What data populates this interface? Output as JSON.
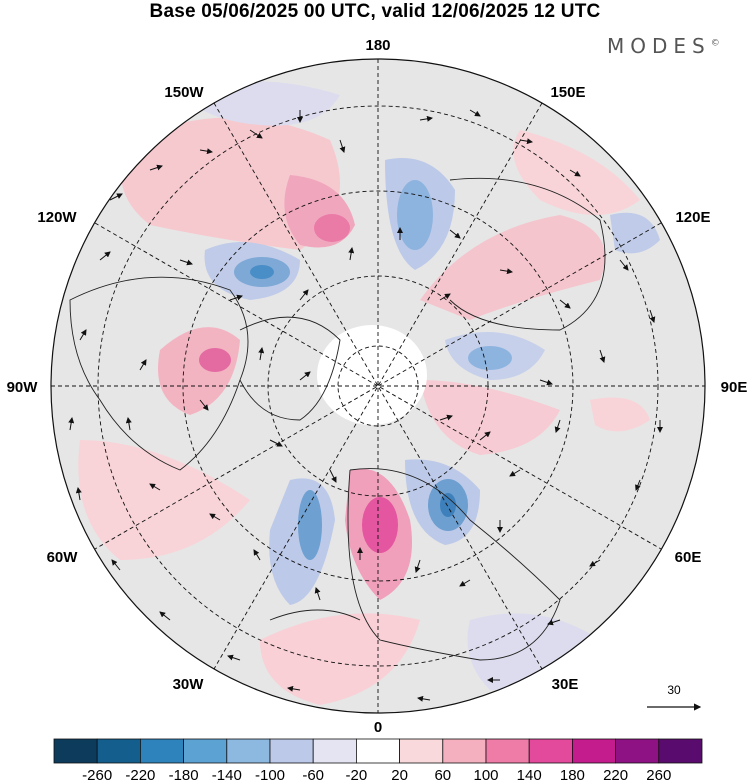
{
  "title": "Base 05/06/2025 00 UTC, valid 12/06/2025 12 UTC",
  "brand": {
    "name": "MODES",
    "mark": "©"
  },
  "map": {
    "projection": "north-polar-stereographic",
    "longitude_labels": {
      "top": "180",
      "upper_left": "150W",
      "upper_right": "150E",
      "left_upper": "120W",
      "right_upper": "120E",
      "left": "90W",
      "right": "90E",
      "left_lower": "60W",
      "right_lower": "60E",
      "lower_left": "30W",
      "lower_right": "30E",
      "bottom": "0"
    },
    "field": "anomaly shading with wind vectors",
    "reference_vector": {
      "value": "30"
    }
  },
  "colorbar": {
    "ticks": [
      "-260",
      "-220",
      "-180",
      "-140",
      "-100",
      "-60",
      "-20",
      "20",
      "60",
      "100",
      "140",
      "180",
      "220",
      "260"
    ],
    "colors": [
      "#0d3b5c",
      "#135e8c",
      "#2f83bd",
      "#5ca3d3",
      "#8db8e0",
      "#bcc9e8",
      "#e4e4f2",
      "#ffffff",
      "#f9d9dc",
      "#f5b0bf",
      "#ef7ba7",
      "#e34a9b",
      "#c41c8c",
      "#8f1285",
      "#5a0c6e"
    ]
  }
}
